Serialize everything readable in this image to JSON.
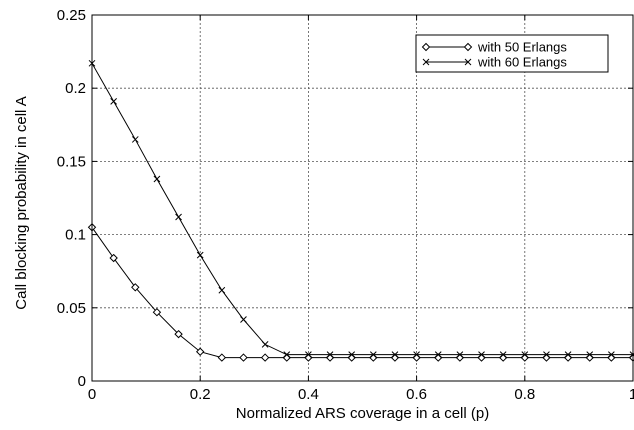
{
  "chart_data": {
    "type": "line",
    "title": "",
    "xlabel": "Normalized ARS coverage in a cell (p)",
    "ylabel": "Call blocking probability in cell A",
    "xlim": [
      0,
      1
    ],
    "ylim": [
      0,
      0.25
    ],
    "x_ticks": [
      0,
      0.2,
      0.4,
      0.6,
      0.8,
      1
    ],
    "x_tick_labels": [
      "0",
      "0.2",
      "0.4",
      "0.6",
      "0.8",
      "1"
    ],
    "y_ticks": [
      0,
      0.05,
      0.1,
      0.15,
      0.2,
      0.25
    ],
    "y_tick_labels": [
      "0",
      "0.05",
      "0.1",
      "0.15",
      "0.2",
      "0.25"
    ],
    "grid": true,
    "legend_position": "top-right",
    "x": [
      0,
      0.04,
      0.08,
      0.12,
      0.16,
      0.2,
      0.24,
      0.28,
      0.32,
      0.36,
      0.4,
      0.44,
      0.48,
      0.52,
      0.56,
      0.6,
      0.64,
      0.68,
      0.72,
      0.76,
      0.8,
      0.84,
      0.88,
      0.92,
      0.96,
      1.0
    ],
    "series": [
      {
        "name": "with 50 Erlangs",
        "marker": "diamond",
        "values": [
          0.105,
          0.084,
          0.064,
          0.047,
          0.032,
          0.02,
          0.016,
          0.016,
          0.016,
          0.016,
          0.016,
          0.016,
          0.016,
          0.016,
          0.016,
          0.016,
          0.016,
          0.016,
          0.016,
          0.016,
          0.016,
          0.016,
          0.016,
          0.016,
          0.016,
          0.016
        ]
      },
      {
        "name": "with 60 Erlangs",
        "marker": "x",
        "values": [
          0.217,
          0.191,
          0.165,
          0.138,
          0.112,
          0.086,
          0.062,
          0.042,
          0.025,
          0.018,
          0.018,
          0.018,
          0.018,
          0.018,
          0.018,
          0.018,
          0.018,
          0.018,
          0.018,
          0.018,
          0.018,
          0.018,
          0.018,
          0.018,
          0.018,
          0.018
        ]
      }
    ]
  }
}
